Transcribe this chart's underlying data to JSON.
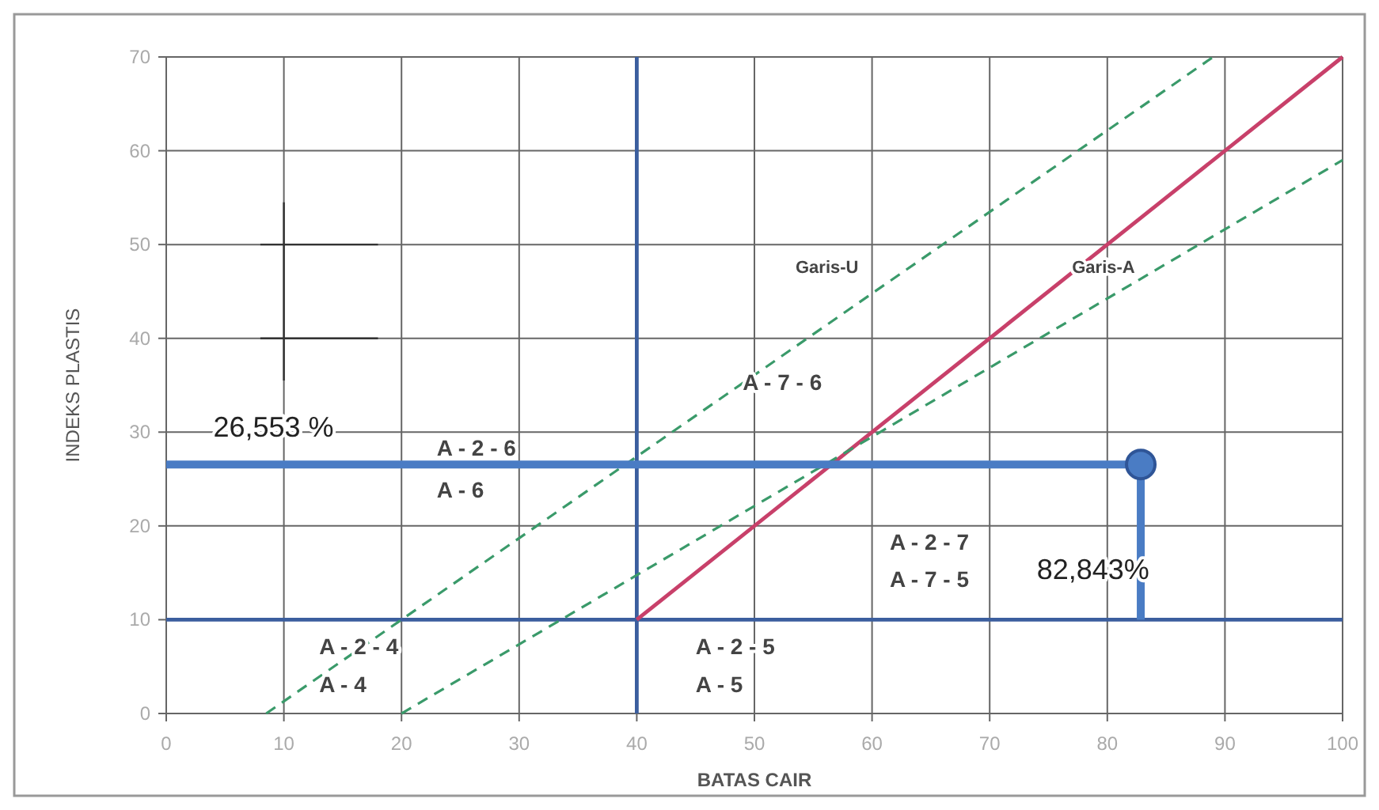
{
  "chart_data": {
    "type": "line",
    "xlabel": "BATAS CAIR",
    "ylabel": "INDEKS PLASTIS",
    "xlim": [
      0,
      100
    ],
    "xticks": [
      0,
      10,
      20,
      30,
      40,
      50,
      60,
      70,
      80,
      90,
      100
    ],
    "ylim": [
      0,
      70
    ],
    "yticks": [
      0,
      10,
      20,
      30,
      40,
      50,
      60,
      70
    ],
    "grid": true,
    "series": [
      {
        "color": "#3b5e9e",
        "line_style": "solid",
        "x": [
          40,
          40
        ],
        "values": [
          0,
          70
        ]
      },
      {
        "color": "#3b5e9e",
        "line_style": "solid",
        "x": [
          0,
          100
        ],
        "values": [
          10,
          10
        ]
      },
      {
        "color": "#c8406a",
        "line_style": "solid",
        "x": [
          40,
          100
        ],
        "values": [
          10,
          70
        ]
      },
      {
        "color": "#3a9a6a",
        "line_style": "dashed",
        "x": [
          8.5,
          89
        ],
        "values": [
          0,
          70
        ]
      },
      {
        "color": "#3a9a6a",
        "line_style": "dashed",
        "x": [
          20,
          100
        ],
        "values": [
          0,
          59
        ]
      },
      {
        "color": "#4a7cc4",
        "line_style": "solid",
        "x": [
          0,
          82.843,
          82.843
        ],
        "values": [
          26.553,
          26.553,
          10
        ]
      },
      {
        "type": "scatter",
        "color": "#4a7cc4",
        "marker": "circle",
        "x": [
          82.843
        ],
        "values": [
          26.553
        ]
      }
    ],
    "annotations": [
      "26,553 %",
      "82,843%",
      "A - 2 - 6",
      "A - 6",
      "A - 2 - 4",
      "A - 4",
      "A - 7 - 6",
      "A - 2 - 7",
      "A - 7 - 5",
      "A - 2 - 5",
      "A - 5",
      "Garis-U",
      "Garis-A"
    ]
  }
}
